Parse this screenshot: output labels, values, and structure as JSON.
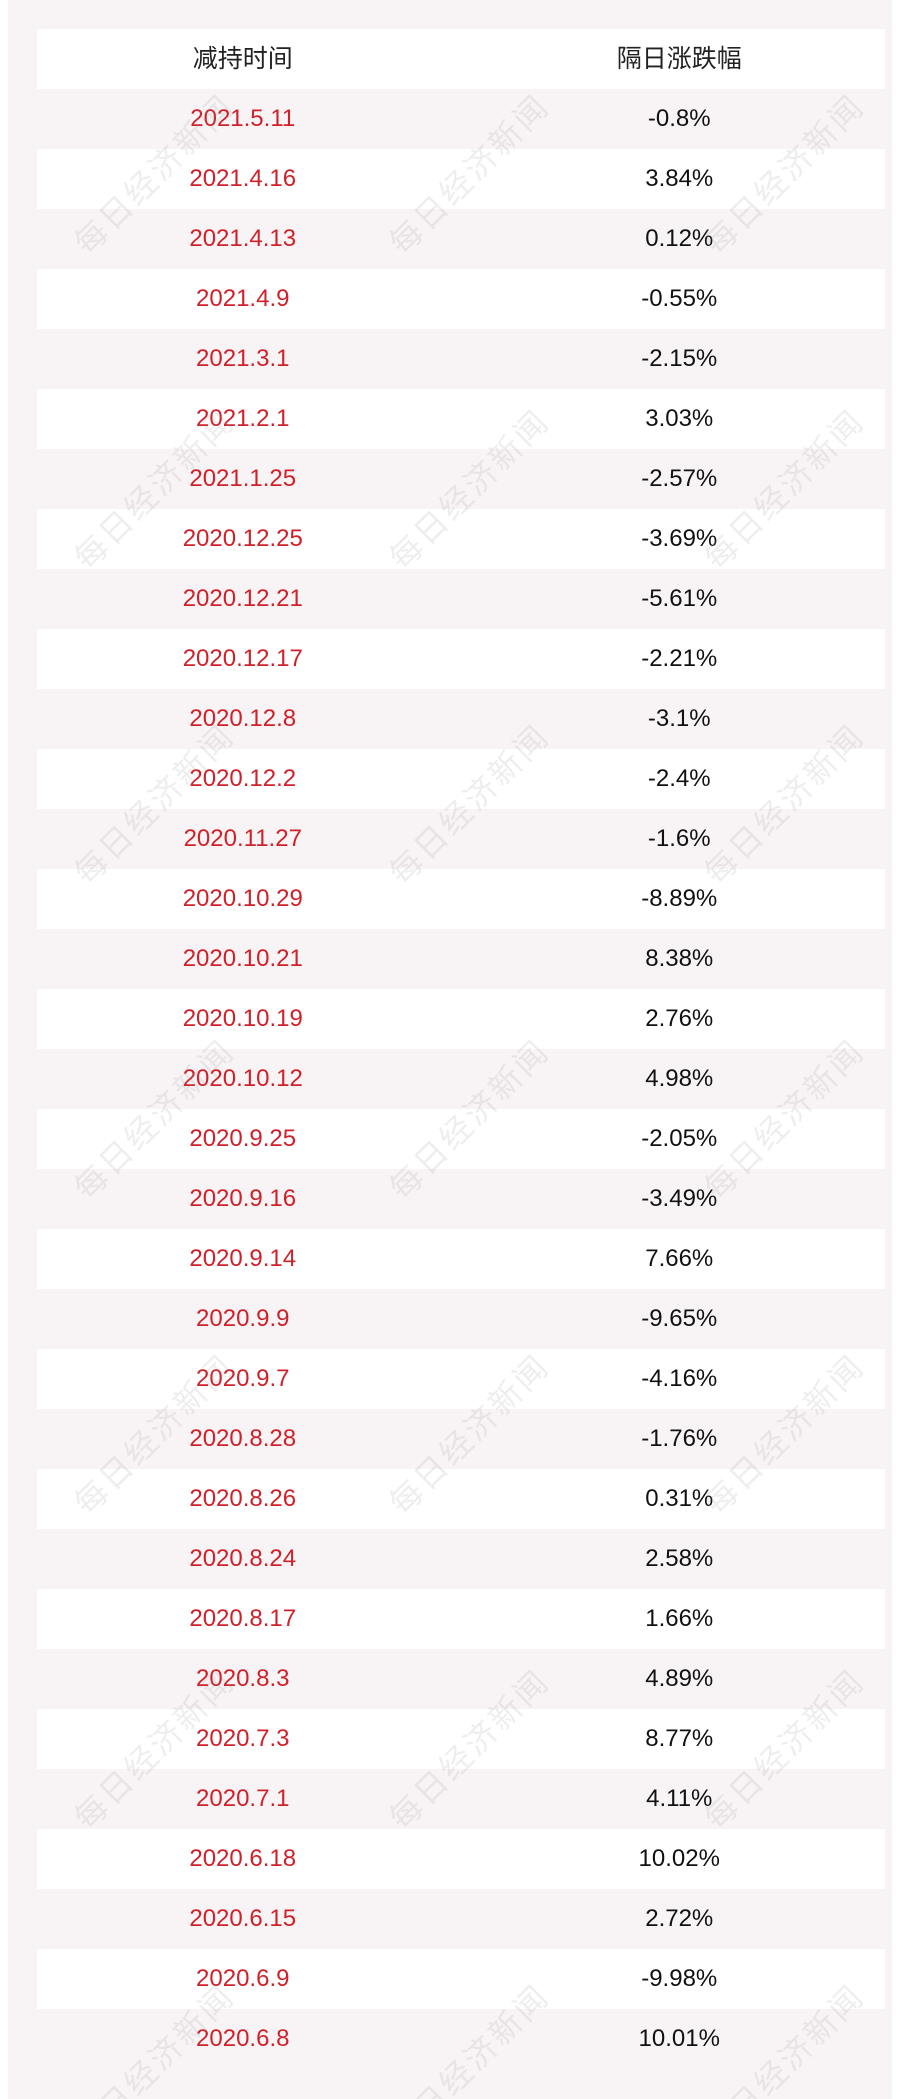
{
  "table": {
    "headers": [
      "减持时间",
      "隔日涨跌幅"
    ],
    "rows": [
      {
        "date": "2021.5.11",
        "change": "-0.8%"
      },
      {
        "date": "2021.4.16",
        "change": "3.84%"
      },
      {
        "date": "2021.4.13",
        "change": "0.12%"
      },
      {
        "date": "2021.4.9",
        "change": "-0.55%"
      },
      {
        "date": "2021.3.1",
        "change": "-2.15%"
      },
      {
        "date": "2021.2.1",
        "change": "3.03%"
      },
      {
        "date": "2021.1.25",
        "change": "-2.57%"
      },
      {
        "date": "2020.12.25",
        "change": "-3.69%"
      },
      {
        "date": "2020.12.21",
        "change": "-5.61%"
      },
      {
        "date": "2020.12.17",
        "change": "-2.21%"
      },
      {
        "date": "2020.12.8",
        "change": "-3.1%"
      },
      {
        "date": "2020.12.2",
        "change": "-2.4%"
      },
      {
        "date": "2020.11.27",
        "change": "-1.6%"
      },
      {
        "date": "2020.10.29",
        "change": "-8.89%"
      },
      {
        "date": "2020.10.21",
        "change": "8.38%"
      },
      {
        "date": "2020.10.19",
        "change": "2.76%"
      },
      {
        "date": "2020.10.12",
        "change": "4.98%"
      },
      {
        "date": "2020.9.25",
        "change": "-2.05%"
      },
      {
        "date": "2020.9.16",
        "change": "-3.49%"
      },
      {
        "date": "2020.9.14",
        "change": "7.66%"
      },
      {
        "date": "2020.9.9",
        "change": "-9.65%"
      },
      {
        "date": "2020.9.7",
        "change": "-4.16%"
      },
      {
        "date": "2020.8.28",
        "change": "-1.76%"
      },
      {
        "date": "2020.8.26",
        "change": "0.31%"
      },
      {
        "date": "2020.8.24",
        "change": "2.58%"
      },
      {
        "date": "2020.8.17",
        "change": "1.66%"
      },
      {
        "date": "2020.8.3",
        "change": "4.89%"
      },
      {
        "date": "2020.7.3",
        "change": "8.77%"
      },
      {
        "date": "2020.7.1",
        "change": "4.11%"
      },
      {
        "date": "2020.6.18",
        "change": "10.02%"
      },
      {
        "date": "2020.6.15",
        "change": "2.72%"
      },
      {
        "date": "2020.6.9",
        "change": "-9.98%"
      },
      {
        "date": "2020.6.8",
        "change": "10.01%"
      }
    ]
  },
  "watermark": {
    "text": "每日经济新闻"
  },
  "colors": {
    "date_text": "#d0212a",
    "value_text": "#111111",
    "row_tint": "#f8f4f5",
    "row_white": "#ffffff"
  }
}
